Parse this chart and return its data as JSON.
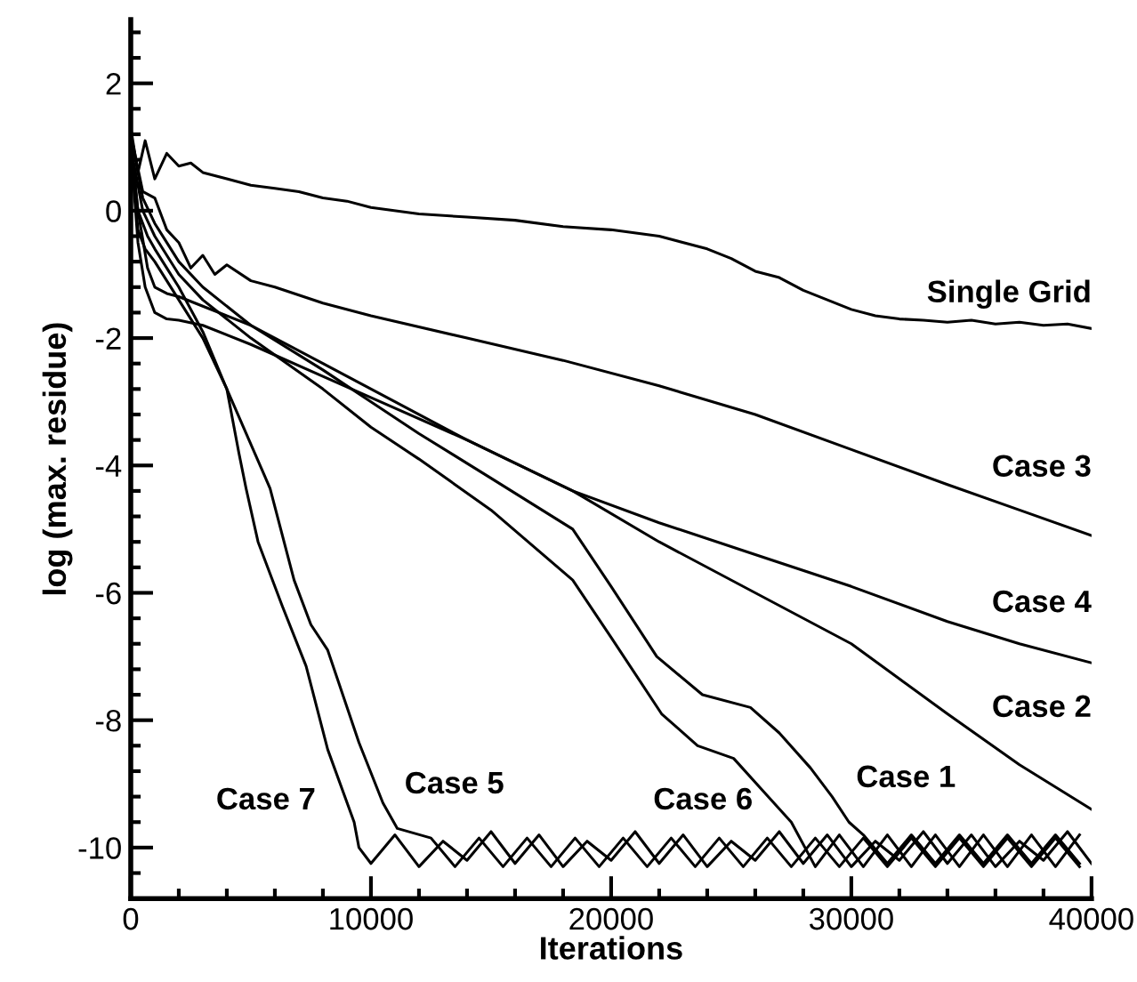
{
  "chart_data": {
    "type": "line",
    "xlabel": "Iterations",
    "ylabel": "log (max. residue)",
    "xlim": [
      0,
      40000
    ],
    "ylim": [
      -10.8,
      3
    ],
    "xticks": [
      0,
      {
        "value": 2000,
        "label": null
      },
      {
        "value": 4000,
        "label": null
      },
      {
        "value": 6000,
        "label": null
      },
      {
        "value": 8000,
        "label": null
      },
      10000,
      {
        "value": 12000,
        "label": null
      },
      {
        "value": 14000,
        "label": null
      },
      {
        "value": 16000,
        "label": null
      },
      {
        "value": 18000,
        "label": null
      },
      20000,
      {
        "value": 22000,
        "label": null
      },
      {
        "value": 24000,
        "label": null
      },
      {
        "value": 26000,
        "label": null
      },
      {
        "value": 28000,
        "label": null
      },
      30000,
      {
        "value": 32000,
        "label": null
      },
      {
        "value": 34000,
        "label": null
      },
      {
        "value": 36000,
        "label": null
      },
      {
        "value": 38000,
        "label": null
      },
      40000
    ],
    "yticks": [
      {
        "value": -10.8,
        "label": null
      },
      {
        "value": -10.4,
        "label": null
      },
      -10,
      {
        "value": -9.6,
        "label": null
      },
      {
        "value": -9.2,
        "label": null
      },
      {
        "value": -8.8,
        "label": null
      },
      {
        "value": -8.4,
        "label": null
      },
      -8,
      {
        "value": -7.6,
        "label": null
      },
      {
        "value": -7.2,
        "label": null
      },
      {
        "value": -6.8,
        "label": null
      },
      {
        "value": -6.4,
        "label": null
      },
      -6,
      {
        "value": -5.6,
        "label": null
      },
      {
        "value": -5.2,
        "label": null
      },
      {
        "value": -4.8,
        "label": null
      },
      {
        "value": -4.4,
        "label": null
      },
      -4,
      {
        "value": -3.6,
        "label": null
      },
      {
        "value": -3.2,
        "label": null
      },
      {
        "value": -2.8,
        "label": null
      },
      {
        "value": -2.4,
        "label": null
      },
      -2,
      {
        "value": -1.6,
        "label": null
      },
      {
        "value": -1.2,
        "label": null
      },
      {
        "value": -0.8,
        "label": null
      },
      {
        "value": -0.4,
        "label": null
      },
      0,
      {
        "value": 0.4,
        "label": null
      },
      {
        "value": 0.8,
        "label": null
      },
      {
        "value": 1.2,
        "label": null
      },
      {
        "value": 1.6,
        "label": null
      },
      2,
      {
        "value": 2.4,
        "label": null
      },
      {
        "value": 2.8,
        "label": null
      }
    ],
    "grid": false,
    "legend": false,
    "marker": "none",
    "line_style": "solid",
    "series": [
      {
        "name": "Single Grid",
        "color": "#000000",
        "x": [
          0,
          300,
          600,
          1000,
          1500,
          2000,
          2500,
          3000,
          4000,
          5000,
          6000,
          7000,
          8000,
          9000,
          10000,
          12000,
          14000,
          16000,
          18000,
          20000,
          22000,
          24000,
          25000,
          26000,
          27000,
          28000,
          29000,
          30000,
          31000,
          32000,
          33000,
          34000,
          35000,
          36000,
          37000,
          38000,
          39000,
          40000
        ],
        "values": [
          1.3,
          0.6,
          1.1,
          0.5,
          0.9,
          0.7,
          0.75,
          0.6,
          0.5,
          0.4,
          0.35,
          0.3,
          0.2,
          0.15,
          0.05,
          -0.05,
          -0.1,
          -0.15,
          -0.25,
          -0.3,
          -0.4,
          -0.6,
          -0.75,
          -0.95,
          -1.05,
          -1.25,
          -1.4,
          -1.55,
          -1.65,
          -1.7,
          -1.72,
          -1.75,
          -1.72,
          -1.78,
          -1.75,
          -1.8,
          -1.78,
          -1.85
        ]
      },
      {
        "name": "Case 3",
        "color": "#000000",
        "x": [
          0,
          500,
          1000,
          1500,
          2000,
          2500,
          3000,
          3500,
          4000,
          5000,
          6000,
          8000,
          10000,
          14000,
          18000,
          22000,
          26000,
          30000,
          34000,
          37000,
          40000
        ],
        "values": [
          1.2,
          0.3,
          0.2,
          -0.3,
          -0.5,
          -0.9,
          -0.7,
          -1.0,
          -0.85,
          -1.1,
          -1.2,
          -1.45,
          -1.65,
          -2.0,
          -2.35,
          -2.75,
          -3.2,
          -3.75,
          -4.3,
          -4.7,
          -5.1
        ]
      },
      {
        "name": "Case 4",
        "color": "#000000",
        "x": [
          0,
          300,
          600,
          1000,
          1500,
          2000,
          3000,
          5000,
          8000,
          11000,
          14000,
          18400,
          22000,
          26000,
          30000,
          34000,
          37000,
          40000
        ],
        "values": [
          1.0,
          -0.5,
          -1.2,
          -1.6,
          -1.7,
          -1.72,
          -1.8,
          -2.1,
          -2.6,
          -3.1,
          -3.6,
          -4.4,
          -4.9,
          -5.4,
          -5.9,
          -6.45,
          -6.8,
          -7.1
        ]
      },
      {
        "name": "Case 2",
        "color": "#000000",
        "x": [
          0,
          300,
          700,
          1000,
          1500,
          2000,
          3000,
          5000,
          8000,
          11000,
          14000,
          18400,
          22000,
          26000,
          30000,
          34000,
          37000,
          40000
        ],
        "values": [
          1.1,
          0.0,
          -0.9,
          -1.2,
          -1.3,
          -1.35,
          -1.5,
          -1.8,
          -2.4,
          -3.0,
          -3.6,
          -4.4,
          -5.2,
          -6.0,
          -6.8,
          -7.9,
          -8.7,
          -9.4
        ]
      },
      {
        "name": "Case 7",
        "color": "#000000",
        "x": [
          0,
          300,
          600,
          1000,
          1500,
          2000,
          3000,
          4000,
          4500,
          4800,
          5300,
          6300,
          7300,
          8200,
          9300,
          9500,
          10000,
          11000,
          12000,
          13000,
          14000,
          15000,
          16000,
          17000,
          18000,
          19000,
          20000,
          21000,
          22000,
          23000,
          24000,
          25000,
          26000,
          27000,
          28000,
          29000,
          30000,
          31000,
          32000,
          33000,
          34000,
          35000,
          36000,
          37000,
          38000,
          39000,
          40000
        ],
        "values": [
          1.0,
          -0.3,
          -0.6,
          -0.8,
          -1.1,
          -1.4,
          -2.0,
          -2.8,
          -3.8,
          -4.36,
          -5.2,
          -6.2,
          -7.15,
          -8.46,
          -9.6,
          -10.0,
          -10.25,
          -9.8,
          -10.3,
          -9.9,
          -10.2,
          -9.75,
          -10.25,
          -9.8,
          -10.3,
          -9.9,
          -10.2,
          -9.75,
          -10.25,
          -9.8,
          -10.3,
          -9.9,
          -10.2,
          -9.75,
          -10.25,
          -9.8,
          -10.3,
          -9.9,
          -10.2,
          -9.75,
          -10.25,
          -9.8,
          -10.3,
          -9.9,
          -10.2,
          -9.75,
          -10.25
        ]
      },
      {
        "name": "Case 5",
        "color": "#000000",
        "x": [
          0,
          300,
          700,
          1000,
          1500,
          2000,
          3000,
          4000,
          5500,
          5800,
          6800,
          7500,
          8200,
          9500,
          10500,
          11100,
          12500,
          13500,
          14500,
          15500,
          16500,
          17500,
          18500,
          19500,
          20500,
          21500,
          22500,
          23500,
          24500,
          25500,
          26500,
          27500,
          28500,
          29500,
          30500,
          31500,
          32500,
          33500,
          34500,
          35500,
          36500,
          37500,
          38500,
          39500
        ],
        "values": [
          1.0,
          0.0,
          -0.4,
          -0.6,
          -0.9,
          -1.2,
          -1.9,
          -2.8,
          -4.1,
          -4.36,
          -5.8,
          -6.5,
          -6.9,
          -8.35,
          -9.3,
          -9.7,
          -9.85,
          -10.3,
          -9.85,
          -10.3,
          -9.85,
          -10.3,
          -9.85,
          -10.3,
          -9.85,
          -10.3,
          -9.85,
          -10.3,
          -9.85,
          -10.3,
          -9.85,
          -10.3,
          -9.85,
          -10.3,
          -9.85,
          -10.3,
          -9.85,
          -10.3,
          -9.85,
          -10.3,
          -9.85,
          -10.3,
          -9.85,
          -10.3
        ]
      },
      {
        "name": "Case 6",
        "color": "#000000",
        "x": [
          0,
          500,
          1000,
          1500,
          2000,
          3000,
          5000,
          8000,
          10000,
          12000,
          15000,
          18400,
          20000,
          22100,
          23600,
          25100,
          26300,
          27500,
          28500,
          29500,
          30500,
          31500,
          32500,
          33500,
          34500,
          35500,
          36500,
          37500,
          38500,
          39500
        ],
        "values": [
          1.0,
          0.0,
          -0.4,
          -0.7,
          -1.0,
          -1.4,
          -2.0,
          -2.8,
          -3.4,
          -3.9,
          -4.7,
          -5.8,
          -6.7,
          -7.9,
          -8.4,
          -8.6,
          -9.1,
          -9.6,
          -10.3,
          -9.8,
          -10.3,
          -9.8,
          -10.3,
          -9.8,
          -10.3,
          -9.8,
          -10.3,
          -9.8,
          -10.3,
          -9.8
        ]
      },
      {
        "name": "Case 1",
        "color": "#000000",
        "x": [
          0,
          500,
          1000,
          1500,
          2000,
          3000,
          5000,
          8000,
          10000,
          12000,
          15000,
          18400,
          20000,
          21900,
          23800,
          25800,
          27000,
          28300,
          29200,
          29900,
          30500,
          31500,
          32500,
          33500,
          34500,
          35500,
          36500,
          37500,
          38500,
          39500
        ],
        "values": [
          1.2,
          0.2,
          -0.2,
          -0.5,
          -0.8,
          -1.2,
          -1.8,
          -2.5,
          -3.0,
          -3.5,
          -4.2,
          -5.0,
          -5.9,
          -7.0,
          -7.6,
          -7.8,
          -8.2,
          -8.75,
          -9.2,
          -9.6,
          -9.8,
          -10.25,
          -9.8,
          -10.25,
          -9.8,
          -10.25,
          -9.8,
          -10.25,
          -9.8,
          -10.25
        ]
      }
    ]
  }
}
